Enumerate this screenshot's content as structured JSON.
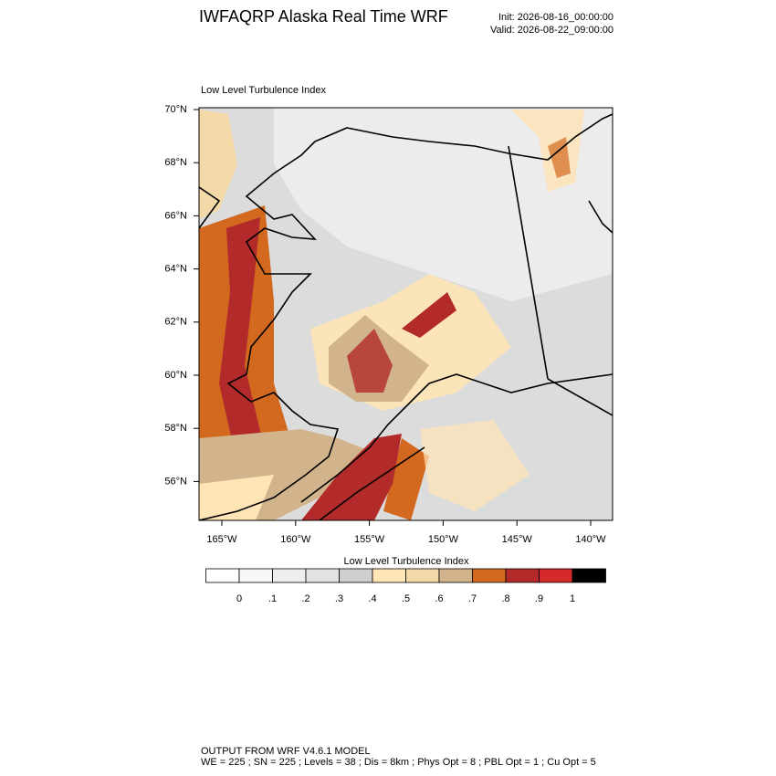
{
  "header": {
    "title": "IWFAQRP Alaska Real Time WRF",
    "init": "Init: 2026-08-16_00:00:00",
    "valid": "Valid: 2026-08-22_09:00:00"
  },
  "map": {
    "title": "Low Level Turbulence Index",
    "lat_labels": [
      "70°N",
      "68°N",
      "66°N",
      "64°N",
      "62°N",
      "60°N",
      "58°N",
      "56°N"
    ],
    "lon_labels": [
      "165°W",
      "160°W",
      "155°W",
      "150°W",
      "145°W",
      "140°W"
    ]
  },
  "colorbar": {
    "title": "Low Level Turbulence Index",
    "colors": [
      "#ffffff",
      "#f7f7f7",
      "#eeeeee",
      "#e2e2e2",
      "#cfcfcf",
      "#ffe4b5",
      "#f3d9a8",
      "#d2b48c",
      "#d2691e",
      "#b22a2a",
      "#d62a2a",
      "#000000"
    ],
    "ticks": [
      0,
      {
        "value": 0.1,
        "label": ".1"
      },
      {
        "value": 0.2,
        "label": ".2"
      },
      {
        "value": 0.3,
        "label": ".3"
      },
      {
        "value": 0.4,
        "label": ".4"
      },
      {
        "value": 0.5,
        "label": ".5"
      },
      {
        "value": 0.6,
        "label": ".6"
      },
      {
        "value": 0.7,
        "label": ".7"
      },
      {
        "value": 0.8,
        "label": ".8"
      },
      {
        "value": 0.9,
        "label": ".9"
      },
      1
    ]
  },
  "footer": {
    "line1": "OUTPUT FROM WRF V4.6.1 MODEL",
    "line2": "WE = 225 ; SN = 225 ; Levels = 38 ; Dis = 8km ; Phys Opt = 8 ; PBL Opt = 1 ; Cu Opt = 5"
  }
}
